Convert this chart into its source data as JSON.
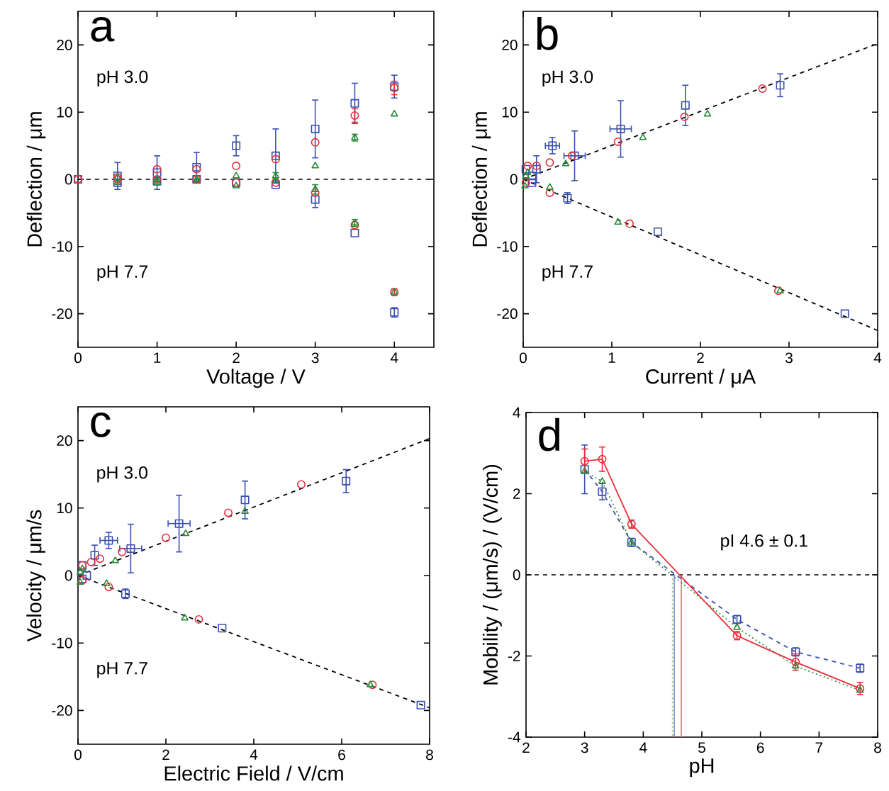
{
  "chart_data": [
    {
      "type": "scatter",
      "title": "a",
      "xlabel": "Voltage / V",
      "ylabel": "Deflection / μm",
      "xlim": [
        0,
        4.5
      ],
      "ylim": [
        -25,
        25
      ],
      "xticks": [
        0,
        1,
        2,
        3,
        4
      ],
      "yticks": [
        -20,
        -10,
        0,
        10,
        20
      ],
      "annotations": [
        "pH 3.0",
        "pH 7.7"
      ],
      "ref_lines": [
        {
          "axis": "y",
          "value": 0,
          "color": "#000000",
          "line_style": "dashed"
        }
      ],
      "series": [
        {
          "color": "#3a4fb0",
          "marker": "square",
          "x": [
            0,
            0.5,
            1,
            1.5,
            2,
            2.5,
            3,
            3.5,
            4,
            0.5,
            1,
            1.5,
            2,
            2.5,
            3,
            3.5,
            4
          ],
          "values": [
            0,
            0.5,
            1,
            1.8,
            5,
            3.5,
            7.5,
            11.3,
            13.8,
            -0.5,
            -0.3,
            0,
            -0.5,
            -0.8,
            -3,
            -8,
            -19.8
          ],
          "errors": [
            null,
            2,
            2.5,
            2.2,
            1.5,
            4,
            4.3,
            3,
            1.7,
            null,
            null,
            null,
            null,
            null,
            1.2,
            null,
            0.7
          ]
        },
        {
          "color": "#e8303a",
          "marker": "circle",
          "x": [
            0,
            0.5,
            1,
            1.5,
            2,
            2.5,
            3,
            3.5,
            4,
            0.5,
            1,
            1.5,
            2,
            2.5,
            3,
            3.5,
            4
          ],
          "values": [
            0,
            0.3,
            1.5,
            1.5,
            2,
            3,
            5.5,
            9.5,
            13.6,
            0,
            0,
            0,
            -0.5,
            -0.5,
            -2,
            -6.8,
            -16.8
          ],
          "errors": [
            null,
            null,
            null,
            null,
            null,
            null,
            null,
            1,
            1,
            null,
            null,
            null,
            null,
            null,
            null,
            null,
            0.5
          ]
        },
        {
          "color": "#2a8a3a",
          "marker": "triangle",
          "x": [
            0.5,
            1,
            1.5,
            2,
            2.5,
            3,
            3.5,
            4,
            0.5,
            1,
            1.5,
            2,
            2.5,
            3,
            3.5,
            4
          ],
          "values": [
            0.3,
            0,
            0,
            0.5,
            0.5,
            2,
            6.2,
            9.7,
            -0.5,
            -0.5,
            -0.3,
            -1,
            -0.3,
            -1.5,
            -6.5,
            -16.8
          ],
          "errors": [
            null,
            null,
            null,
            null,
            0.5,
            null,
            0.5,
            null,
            null,
            null,
            null,
            null,
            null,
            0.7,
            0.5,
            null
          ]
        }
      ]
    },
    {
      "type": "scatter",
      "title": "b",
      "xlabel": "Current / μA",
      "ylabel": "Deflection / μm",
      "xlim": [
        0,
        4
      ],
      "ylim": [
        -25,
        25
      ],
      "xticks": [
        0,
        1,
        2,
        3,
        4
      ],
      "yticks": [
        -20,
        -10,
        0,
        10,
        20
      ],
      "annotations": [
        "pH 3.0",
        "pH 7.7"
      ],
      "series": [
        {
          "type": "line",
          "color": "#000000",
          "line_style": "dashed",
          "marker": "none",
          "x": [
            0,
            4
          ],
          "values": [
            0,
            20.2
          ]
        },
        {
          "type": "line",
          "color": "#000000",
          "line_style": "dashed",
          "marker": "none",
          "x": [
            0,
            4
          ],
          "values": [
            0,
            -22.5
          ]
        },
        {
          "color": "#3a4fb0",
          "marker": "square",
          "x": [
            0.03,
            0.1,
            0.15,
            0.33,
            0.58,
            1.1,
            1.83,
            2.9,
            0.1,
            0.5,
            1.52,
            3.63
          ],
          "values": [
            1.5,
            0.5,
            1.5,
            5,
            3.5,
            7.5,
            11,
            14,
            -0.5,
            -2.8,
            -7.8,
            -20
          ],
          "errors": [
            null,
            null,
            2,
            1.2,
            3.7,
            4.2,
            3,
            1.7,
            null,
            0.8,
            null,
            null
          ],
          "xerrors": [
            null,
            null,
            null,
            0.08,
            0.12,
            0.12,
            null,
            null,
            null,
            null,
            null,
            null
          ]
        },
        {
          "color": "#e8303a",
          "marker": "circle",
          "x": [
            0.05,
            0.15,
            0.3,
            0.55,
            1.07,
            1.82,
            2.7,
            0.03,
            0.3,
            1.2,
            2.88
          ],
          "values": [
            2,
            2,
            2.5,
            3.5,
            5.6,
            9.3,
            13.5,
            -0.5,
            -2,
            -6.6,
            -16.6
          ]
        },
        {
          "color": "#2a8a3a",
          "marker": "triangle",
          "x": [
            0.03,
            0.05,
            0.48,
            1.35,
            2.08,
            0.02,
            0.3,
            1.07,
            2.9
          ],
          "values": [
            0.5,
            1,
            2.3,
            6.2,
            9.7,
            -1,
            -1.2,
            -6.4,
            -16.6
          ]
        }
      ]
    },
    {
      "type": "scatter",
      "title": "c",
      "xlabel": "Electric Field / V/cm",
      "ylabel": "Velocity / μm/s",
      "xlim": [
        0,
        8
      ],
      "ylim": [
        -25,
        25
      ],
      "xticks": [
        0,
        2,
        4,
        6,
        8
      ],
      "yticks": [
        -20,
        -10,
        0,
        10,
        20
      ],
      "annotations": [
        "pH 3.0",
        "pH 7.7"
      ],
      "series": [
        {
          "type": "line",
          "color": "#000000",
          "line_style": "dashed",
          "marker": "none",
          "x": [
            0,
            8
          ],
          "values": [
            0,
            20.3
          ]
        },
        {
          "type": "line",
          "color": "#000000",
          "line_style": "dashed",
          "marker": "none",
          "x": [
            0,
            8
          ],
          "values": [
            0,
            -19.6
          ]
        },
        {
          "color": "#3a4fb0",
          "marker": "square",
          "x": [
            0.1,
            0.2,
            0.38,
            0.7,
            1.2,
            2.3,
            3.8,
            6.1,
            0.1,
            1.08,
            3.28,
            7.8
          ],
          "values": [
            1.5,
            0,
            3,
            5.2,
            4,
            7.7,
            11.2,
            14,
            -0.5,
            -2.7,
            -7.8,
            -19.2
          ],
          "errors": [
            null,
            null,
            1.5,
            1.2,
            3.6,
            4.2,
            2.8,
            1.7,
            null,
            0.7,
            null,
            null
          ],
          "xerrors": [
            null,
            null,
            null,
            0.2,
            0.25,
            0.25,
            null,
            null,
            null,
            null,
            null,
            null
          ]
        },
        {
          "color": "#e8303a",
          "marker": "circle",
          "x": [
            0.1,
            0.3,
            0.5,
            1.0,
            2.0,
            3.42,
            5.08,
            0.1,
            0.7,
            2.75,
            6.7
          ],
          "values": [
            1.5,
            2,
            2.5,
            3.5,
            5.6,
            9.3,
            13.5,
            -0.7,
            -1.7,
            -6.5,
            -16.2
          ]
        },
        {
          "color": "#2a8a3a",
          "marker": "triangle",
          "x": [
            0.05,
            0.1,
            0.85,
            2.45,
            3.8,
            0.05,
            0.65,
            2.43,
            6.65
          ],
          "values": [
            0.5,
            1,
            2.2,
            6.2,
            9.5,
            -1,
            -1.2,
            -6.3,
            -16.2
          ]
        }
      ]
    },
    {
      "type": "line",
      "title": "d",
      "xlabel": "pH",
      "ylabel": "Mobility / (μm/s) / (V/cm)",
      "xlim": [
        2,
        8
      ],
      "ylim": [
        -4,
        4
      ],
      "xticks": [
        2,
        3,
        4,
        5,
        6,
        7,
        8
      ],
      "yticks": [
        -4,
        -2,
        0,
        2,
        4
      ],
      "annotations": [
        "pI 4.6 ± 0.1"
      ],
      "ref_lines": [
        {
          "axis": "y",
          "value": 0,
          "color": "#000000",
          "line_style": "dashed"
        }
      ],
      "series": [
        {
          "color": "#8a9ad8",
          "line_style": "solid",
          "marker": "none",
          "x": [
            4.53,
            4.53
          ],
          "values": [
            0,
            -4
          ]
        },
        {
          "color": "#7ac08a",
          "line_style": "dotted",
          "marker": "none",
          "x": [
            4.5,
            4.5
          ],
          "values": [
            0,
            -4
          ]
        },
        {
          "color": "#f07a80",
          "line_style": "solid",
          "marker": "none",
          "x": [
            4.65,
            4.65
          ],
          "values": [
            0,
            -4
          ]
        },
        {
          "color": "#3a4fb0",
          "line_style": "dashed",
          "marker": "square",
          "x": [
            3,
            3.3,
            3.8,
            5.6,
            6.6,
            7.7
          ],
          "values": [
            2.6,
            2.05,
            0.8,
            -1.1,
            -1.9,
            -2.3
          ],
          "errors": [
            0.6,
            0.2,
            0.1,
            0.1,
            0.1,
            0.1
          ]
        },
        {
          "color": "#2a8a3a",
          "line_style": "dotted",
          "marker": "triangle",
          "x": [
            3,
            3.3,
            3.8,
            5.6,
            6.6,
            7.7
          ],
          "values": [
            2.55,
            2.3,
            0.8,
            -1.3,
            -2.25,
            -2.85
          ]
        },
        {
          "color": "#e8303a",
          "line_style": "solid",
          "marker": "circle",
          "x": [
            3,
            3.3,
            3.8,
            5.6,
            6.6,
            7.7
          ],
          "values": [
            2.8,
            2.85,
            1.25,
            -1.5,
            -2.15,
            -2.8
          ],
          "errors": [
            0.3,
            0.3,
            0.1,
            0.1,
            0.2,
            0.15
          ]
        }
      ]
    }
  ]
}
